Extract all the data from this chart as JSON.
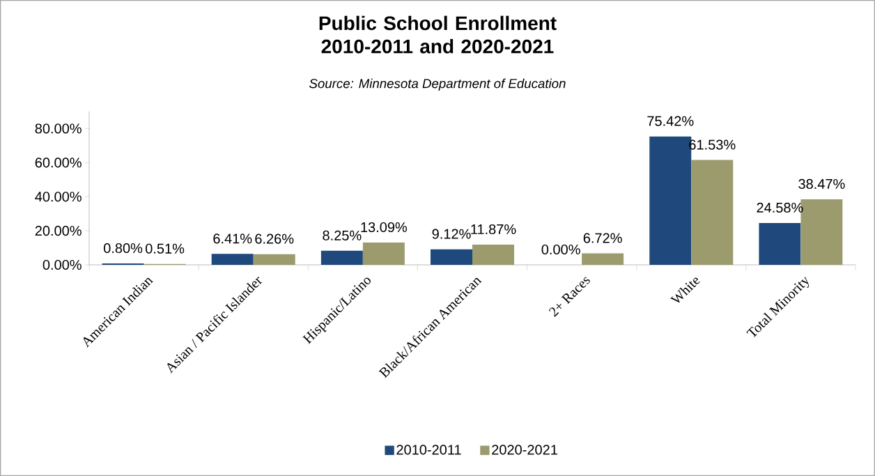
{
  "chart_data": {
    "type": "bar",
    "title": "Public School Enrollment 2010-2011 and 2020-2021",
    "annotations": [
      "Source: Minnesota Department of Education"
    ],
    "categories": [
      "American Indian",
      "Asian / Pacific Islander",
      "Hispanic/Latino",
      "Black/African American",
      "2+ Races",
      "White",
      "Total Minority"
    ],
    "series": [
      {
        "name": "2010-2011",
        "color": "#1f497d",
        "values": [
          0.8,
          6.41,
          8.25,
          9.12,
          0.0,
          75.42,
          24.58
        ],
        "value_labels": [
          "0.80%",
          "6.41%",
          "8.25%",
          "9.12%",
          "0.00%",
          "75.42%",
          "24.58%"
        ]
      },
      {
        "name": "2020-2021",
        "color": "#9b9b6e",
        "values": [
          0.51,
          6.26,
          13.09,
          11.87,
          6.72,
          61.53,
          38.47
        ],
        "value_labels": [
          "0.51%",
          "6.26%",
          "13.09%",
          "11.87%",
          "6.72%",
          "61.53%",
          "38.47%"
        ]
      }
    ],
    "ylim": [
      0,
      90
    ],
    "yticks": [
      {
        "value": 0,
        "label": "0.00%"
      },
      {
        "value": 20,
        "label": "20.00%"
      },
      {
        "value": 40,
        "label": "40.00%"
      },
      {
        "value": 60,
        "label": "60.00%"
      },
      {
        "value": 80,
        "label": "80.00%"
      }
    ],
    "grid": false,
    "legend": "bottom"
  }
}
